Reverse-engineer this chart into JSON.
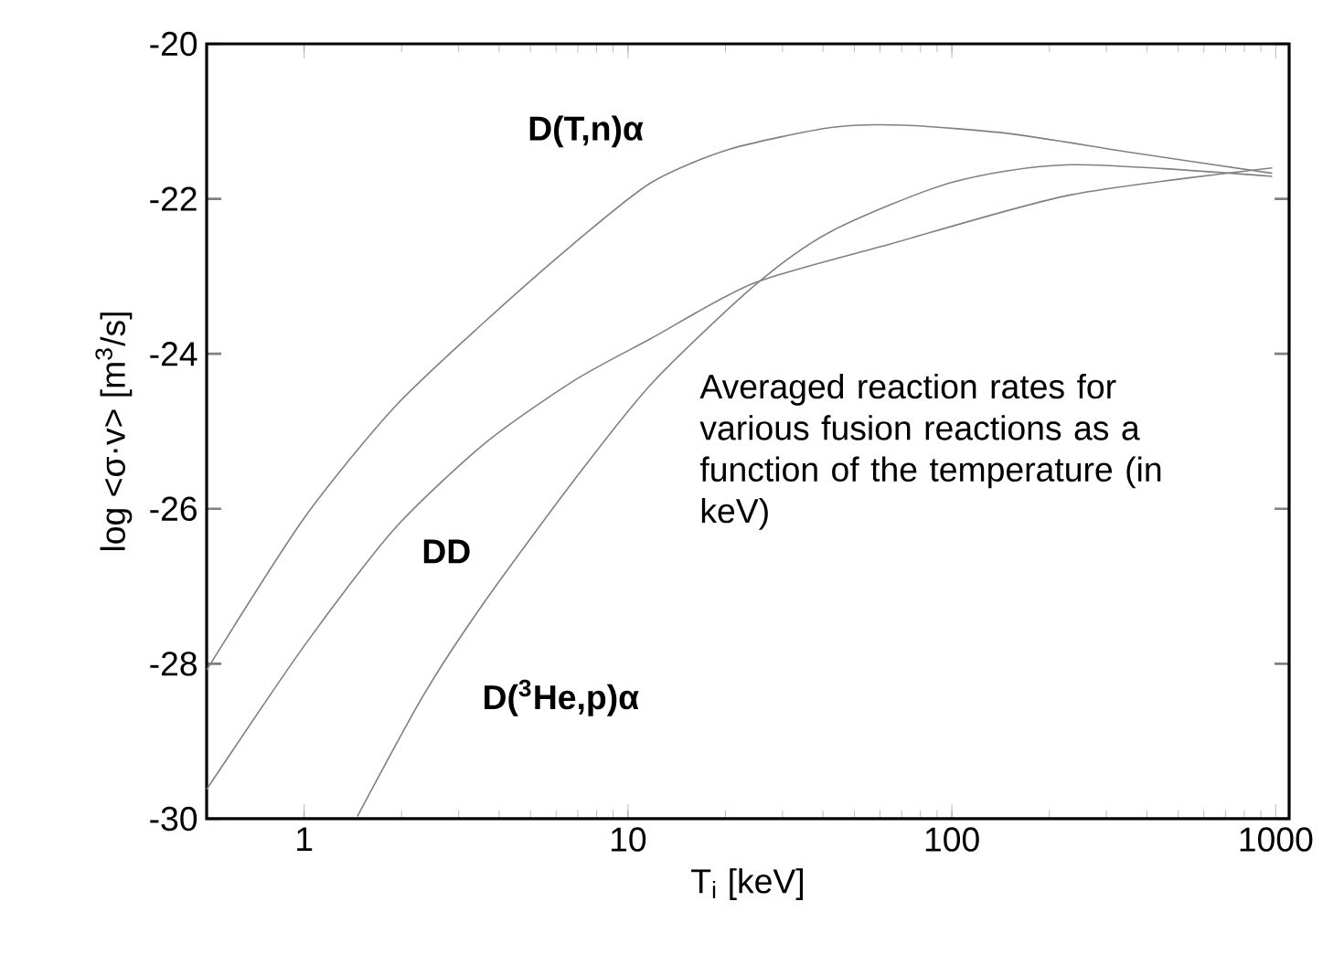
{
  "chart_data": {
    "type": "line",
    "xlabel": "T$_{i}$    [keV]",
    "ylabel": "log <σ·v>    [m$^{3}$/s]",
    "log": "x",
    "xlim": [
      0.5,
      1100
    ],
    "ylim": [
      -30,
      -20
    ],
    "xticks": [
      1,
      10,
      100,
      1000
    ],
    "yticks": [
      -30,
      -28,
      -26,
      -24,
      -22,
      -20
    ],
    "annotations": [
      "Averaged reaction rates for various fusion reactions as a function of the temperature (in keV)"
    ],
    "series": [
      {
        "name": "D(T,n)α",
        "color": "#808080",
        "x": [
          0.5,
          1,
          1.89,
          3.58,
          6.79,
          11.8,
          20.6,
          42.4,
          70.8,
          152,
          356,
          975
        ],
        "values": [
          -28.08,
          -26.12,
          -24.7,
          -23.6,
          -22.58,
          -21.79,
          -21.36,
          -21.08,
          -21.05,
          -21.16,
          -21.4,
          -21.67
        ]
      },
      {
        "name": "DD",
        "color": "#808080",
        "x": [
          0.5,
          1,
          1.89,
          3.58,
          6.79,
          11.8,
          24.4,
          65,
          232,
          975
        ],
        "values": [
          -29.62,
          -27.77,
          -26.27,
          -25.17,
          -24.35,
          -23.8,
          -23.09,
          -22.58,
          -21.95,
          -21.6
        ]
      },
      {
        "name": "D($^{3}$He,p)α",
        "color": "#808080",
        "x": [
          1.46,
          2.34,
          3.58,
          6.79,
          11.8,
          24.4,
          42.4,
          99.6,
          232,
          975
        ],
        "values": [
          -29.97,
          -28.4,
          -27.22,
          -25.64,
          -24.39,
          -23.13,
          -22.42,
          -21.79,
          -21.56,
          -21.71
        ]
      }
    ]
  }
}
